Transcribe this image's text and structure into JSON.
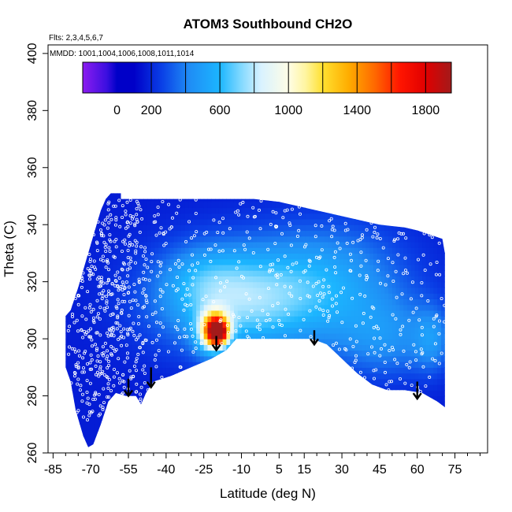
{
  "chart_data": {
    "type": "heatmap",
    "title": "ATOM3 Southbound CH2O",
    "flights_note": "Flts: 2,3,4,5,6,7",
    "dates_note": "MMDD: 1001,1004,1006,1008,1011,1014",
    "xlabel": "Latitude (deg N)",
    "ylabel": "Theta (C)",
    "xlim": [
      -87,
      88
    ],
    "ylim": [
      260,
      403
    ],
    "x_ticks": [
      -85,
      -70,
      -55,
      -40,
      -25,
      -10,
      5,
      15,
      30,
      45,
      60,
      75
    ],
    "x_minor_ticks": [
      -80,
      -75,
      -65,
      -60,
      -50,
      -45,
      -35,
      -30,
      -20,
      -15,
      -5,
      0,
      10,
      20,
      25,
      35,
      40,
      50,
      55,
      65,
      70,
      80,
      85
    ],
    "y_ticks": [
      260,
      280,
      300,
      320,
      340,
      360,
      380,
      400
    ],
    "colorbar": {
      "range": [
        -200,
        1950
      ],
      "ticks": [
        0,
        200,
        600,
        1000,
        1400,
        1800
      ],
      "tick_labels": [
        "0",
        "200",
        "600",
        "1000",
        "1400",
        "1800"
      ],
      "separators": [
        200,
        400,
        600,
        800,
        1000,
        1200,
        1400,
        1600,
        1800
      ],
      "stops": [
        {
          "v": -200,
          "c": "#8c1cf0"
        },
        {
          "v": -60,
          "c": "#3b0fe0"
        },
        {
          "v": 0,
          "c": "#0000c8"
        },
        {
          "v": 100,
          "c": "#0000c8"
        },
        {
          "v": 260,
          "c": "#0a3fe6"
        },
        {
          "v": 420,
          "c": "#1f8cf5"
        },
        {
          "v": 600,
          "c": "#1cb6ff"
        },
        {
          "v": 720,
          "c": "#7fd8ff"
        },
        {
          "v": 840,
          "c": "#d8f2ff"
        },
        {
          "v": 1000,
          "c": "#fffde6"
        },
        {
          "v": 1100,
          "c": "#fff5a0"
        },
        {
          "v": 1200,
          "c": "#ffe030"
        },
        {
          "v": 1350,
          "c": "#ffad00"
        },
        {
          "v": 1500,
          "c": "#ff6a00"
        },
        {
          "v": 1650,
          "c": "#ff1500"
        },
        {
          "v": 1800,
          "c": "#e00000"
        },
        {
          "v": 1950,
          "c": "#a31a1a"
        }
      ]
    },
    "coverage": {
      "top": [
        [
          -80,
          308
        ],
        [
          -78,
          310
        ],
        [
          -75,
          318
        ],
        [
          -72,
          327
        ],
        [
          -70,
          333
        ],
        [
          -68,
          339
        ],
        [
          -66,
          345
        ],
        [
          -64,
          349
        ],
        [
          -62,
          351
        ],
        [
          -58,
          351
        ],
        [
          -58,
          349
        ],
        [
          -5,
          349
        ],
        [
          5,
          348
        ],
        [
          15,
          346
        ],
        [
          25,
          344
        ],
        [
          35,
          342
        ],
        [
          45,
          340
        ],
        [
          55,
          339
        ],
        [
          60,
          338
        ],
        [
          70,
          335
        ],
        [
          71,
          330
        ]
      ],
      "bottom": [
        [
          71,
          276
        ],
        [
          68,
          278
        ],
        [
          62,
          281
        ],
        [
          55,
          282
        ],
        [
          48,
          282
        ],
        [
          42,
          284
        ],
        [
          36,
          288
        ],
        [
          30,
          293
        ],
        [
          24,
          298
        ],
        [
          18,
          300
        ],
        [
          8,
          300
        ],
        [
          -5,
          300
        ],
        [
          -12,
          300
        ],
        [
          -16,
          296
        ],
        [
          -22,
          293
        ],
        [
          -30,
          290
        ],
        [
          -38,
          287
        ],
        [
          -45,
          285
        ],
        [
          -48,
          281
        ],
        [
          -50,
          277
        ],
        [
          -52,
          280
        ],
        [
          -56,
          280
        ],
        [
          -60,
          281
        ],
        [
          -63,
          278
        ],
        [
          -66,
          270
        ],
        [
          -69,
          263
        ],
        [
          -71,
          262
        ],
        [
          -73,
          266
        ],
        [
          -76,
          275
        ],
        [
          -78,
          285
        ],
        [
          -80,
          290
        ]
      ]
    },
    "field": {
      "base": 170,
      "features": [
        {
          "x": -12,
          "y": 312,
          "sx": 22,
          "sy": 12,
          "v": 380
        },
        {
          "x": 5,
          "y": 318,
          "sx": 30,
          "sy": 14,
          "v": 230
        },
        {
          "x": 28,
          "y": 322,
          "sx": 20,
          "sy": 14,
          "v": 170
        },
        {
          "x": -25,
          "y": 322,
          "sx": 12,
          "sy": 8,
          "v": 150
        },
        {
          "x": 48,
          "y": 300,
          "sx": 15,
          "sy": 10,
          "v": 230
        },
        {
          "x": 66,
          "y": 300,
          "sx": 5,
          "sy": 8,
          "v": 200
        },
        {
          "x": -20,
          "y": 303,
          "sx": 3.5,
          "sy": 4,
          "v": 1500
        },
        {
          "x": -19,
          "y": 302,
          "sx": 1.8,
          "sy": 2,
          "v": 700
        },
        {
          "x": -24,
          "y": 302,
          "sx": 4,
          "sy": 6,
          "v": 220
        }
      ]
    },
    "arrows": [
      {
        "x": -55,
        "y_top": 286,
        "y_bottom": 280
      },
      {
        "x": -46,
        "y_top": 290,
        "y_bottom": 283
      },
      {
        "x": -20,
        "y_top": 301,
        "y_bottom": 296
      },
      {
        "x": 19,
        "y_top": 303,
        "y_bottom": 298
      },
      {
        "x": 60,
        "y_top": 285,
        "y_bottom": 279
      }
    ],
    "observations": {
      "count": 900,
      "seed": 7,
      "lat_range": [
        -79,
        71
      ],
      "theta_range": [
        270,
        349
      ],
      "density_peak_lat": -62
    }
  }
}
